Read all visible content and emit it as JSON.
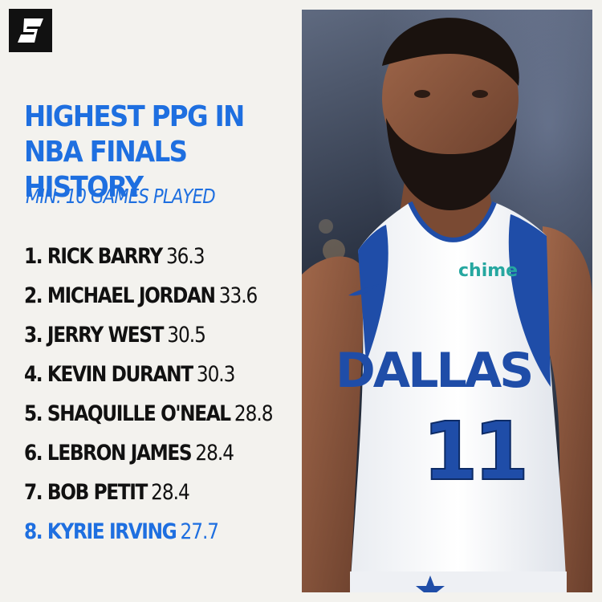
{
  "brand": {
    "logo_letter": "S"
  },
  "headline": {
    "line1": "HIGHEST PPG IN",
    "line2": "NBA FINALS HISTORY"
  },
  "subhead": "MIN. 10 GAMES PLAYED",
  "rankings": [
    {
      "name": "1. RICK BARRY",
      "value": "36.3"
    },
    {
      "name": "2. MICHAEL JORDAN",
      "value": "33.6"
    },
    {
      "name": "3. JERRY WEST",
      "value": "30.5"
    },
    {
      "name": "4. KEVIN DURANT",
      "value": "30.3"
    },
    {
      "name": "5. SHAQUILLE O'NEAL",
      "value": "28.8"
    },
    {
      "name": "6. LEBRON JAMES",
      "value": "28.4"
    },
    {
      "name": "7. BOB PETIT",
      "value": "28.4"
    },
    {
      "name": "8. KYRIE IRVING",
      "value": "27.7"
    }
  ],
  "jersey": {
    "sponsor": "chime",
    "team": "DALLAS",
    "number": "11"
  },
  "colors": {
    "accent": "#1e6fe0",
    "text": "#111111",
    "background": "#f3f2ee",
    "jersey_blue": "#1f4da8"
  }
}
